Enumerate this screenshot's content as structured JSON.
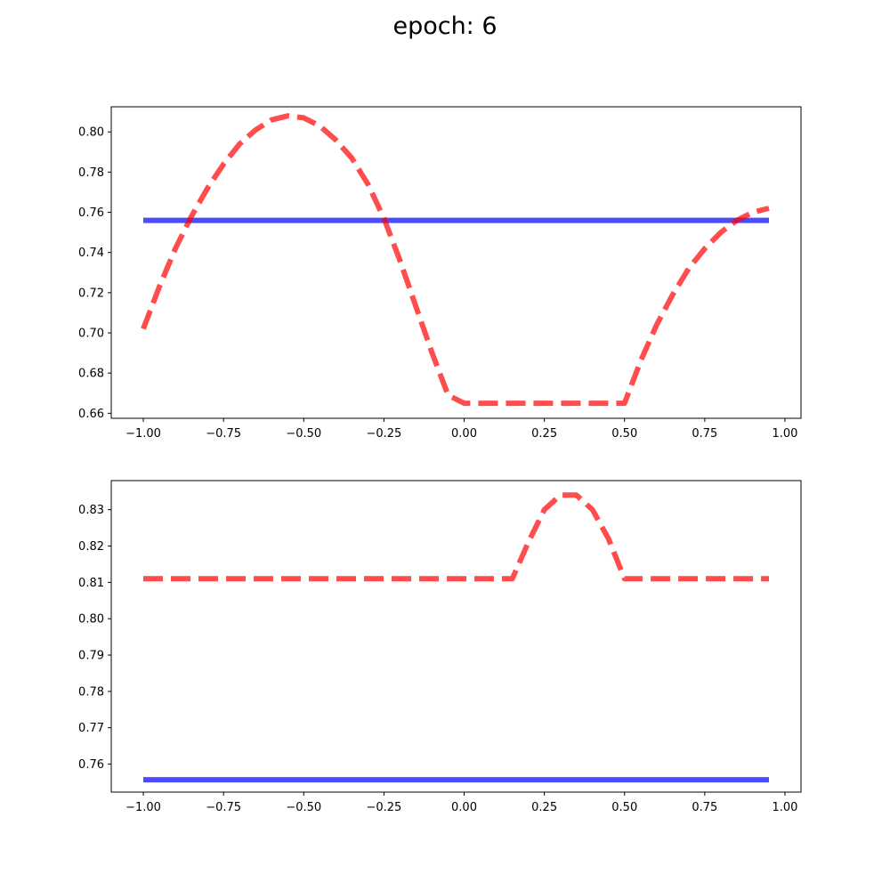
{
  "title": "epoch: 6",
  "colors": {
    "solid": "#0000ff",
    "dashed": "#ff0000",
    "axes": "#000000"
  },
  "chart_data": [
    {
      "type": "line",
      "xlim": [
        -1.1,
        1.05
      ],
      "ylim": [
        0.6575,
        0.8125
      ],
      "xticks": [
        -1.0,
        -0.75,
        -0.5,
        -0.25,
        0.0,
        0.25,
        0.5,
        0.75,
        1.0
      ],
      "xtick_labels": [
        "−1.00",
        "−0.75",
        "−0.50",
        "−0.25",
        "0.00",
        "0.25",
        "0.50",
        "0.75",
        "1.00"
      ],
      "yticks": [
        0.66,
        0.68,
        0.7,
        0.72,
        0.74,
        0.76,
        0.78,
        0.8
      ],
      "ytick_labels": [
        "0.66",
        "0.68",
        "0.70",
        "0.72",
        "0.74",
        "0.76",
        "0.78",
        "0.80"
      ],
      "grid": false,
      "series": [
        {
          "style": "solid",
          "color": "#0000ff",
          "x": [
            -1.0,
            0.95
          ],
          "y": [
            0.756,
            0.756
          ]
        },
        {
          "style": "dashed",
          "color": "#ff0000",
          "x": [
            -1.0,
            -0.95,
            -0.9,
            -0.85,
            -0.8,
            -0.75,
            -0.7,
            -0.65,
            -0.6,
            -0.55,
            -0.5,
            -0.45,
            -0.4,
            -0.35,
            -0.3,
            -0.25,
            -0.2,
            -0.15,
            -0.1,
            -0.05,
            0.0,
            0.05,
            0.1,
            0.15,
            0.2,
            0.25,
            0.3,
            0.35,
            0.4,
            0.45,
            0.5,
            0.55,
            0.6,
            0.65,
            0.7,
            0.75,
            0.8,
            0.85,
            0.9,
            0.95
          ],
          "y": [
            0.702,
            0.723,
            0.742,
            0.758,
            0.772,
            0.784,
            0.794,
            0.801,
            0.806,
            0.808,
            0.807,
            0.803,
            0.796,
            0.787,
            0.774,
            0.757,
            0.736,
            0.713,
            0.69,
            0.669,
            0.665,
            0.665,
            0.665,
            0.665,
            0.665,
            0.665,
            0.665,
            0.665,
            0.665,
            0.665,
            0.665,
            0.686,
            0.704,
            0.719,
            0.732,
            0.742,
            0.75,
            0.756,
            0.76,
            0.762
          ]
        }
      ]
    },
    {
      "type": "line",
      "xlim": [
        -1.1,
        1.05
      ],
      "ylim": [
        0.7523,
        0.838
      ],
      "xticks": [
        -1.0,
        -0.75,
        -0.5,
        -0.25,
        0.0,
        0.25,
        0.5,
        0.75,
        1.0
      ],
      "xtick_labels": [
        "−1.00",
        "−0.75",
        "−0.50",
        "−0.25",
        "0.00",
        "0.25",
        "0.50",
        "0.75",
        "1.00"
      ],
      "yticks": [
        0.76,
        0.77,
        0.78,
        0.79,
        0.8,
        0.81,
        0.82,
        0.83
      ],
      "ytick_labels": [
        "0.76",
        "0.77",
        "0.78",
        "0.79",
        "0.80",
        "0.81",
        "0.82",
        "0.83"
      ],
      "grid": false,
      "series": [
        {
          "style": "solid",
          "color": "#0000ff",
          "x": [
            -1.0,
            0.95
          ],
          "y": [
            0.7557,
            0.7557
          ]
        },
        {
          "style": "dashed",
          "color": "#ff0000",
          "x": [
            -1.0,
            -0.95,
            -0.9,
            -0.85,
            -0.8,
            -0.75,
            -0.7,
            -0.65,
            -0.6,
            -0.55,
            -0.5,
            -0.45,
            -0.4,
            -0.35,
            -0.3,
            -0.25,
            -0.2,
            -0.15,
            -0.1,
            -0.05,
            0.0,
            0.05,
            0.1,
            0.15,
            0.2,
            0.25,
            0.3,
            0.35,
            0.4,
            0.45,
            0.5,
            0.55,
            0.6,
            0.65,
            0.7,
            0.75,
            0.8,
            0.85,
            0.9,
            0.95
          ],
          "y": [
            0.811,
            0.811,
            0.811,
            0.811,
            0.811,
            0.811,
            0.811,
            0.811,
            0.811,
            0.811,
            0.811,
            0.811,
            0.811,
            0.811,
            0.811,
            0.811,
            0.811,
            0.811,
            0.811,
            0.811,
            0.811,
            0.811,
            0.811,
            0.811,
            0.821,
            0.83,
            0.834,
            0.834,
            0.83,
            0.822,
            0.811,
            0.811,
            0.811,
            0.811,
            0.811,
            0.811,
            0.811,
            0.811,
            0.811,
            0.811
          ]
        }
      ]
    }
  ]
}
